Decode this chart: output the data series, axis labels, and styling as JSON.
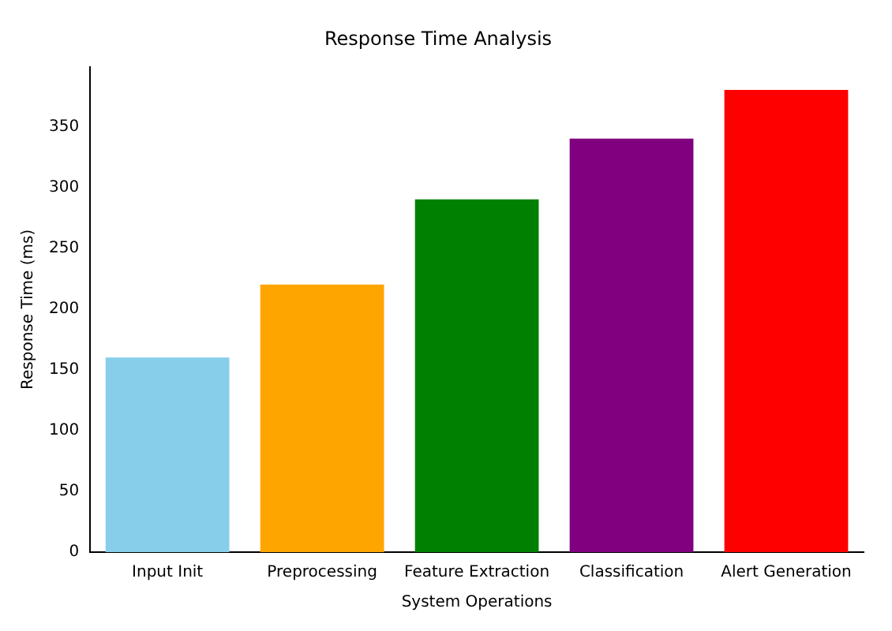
{
  "chart_data": {
    "type": "bar",
    "title": "Response Time Analysis",
    "xlabel": "System Operations",
    "ylabel": "Response Time (ms)",
    "categories": [
      "Input Init",
      "Preprocessing",
      "Feature Extraction",
      "Classification",
      "Alert Generation"
    ],
    "values": [
      160,
      220,
      290,
      340,
      380
    ],
    "colors": [
      "#87ceeb",
      "#ffa500",
      "#008000",
      "#800080",
      "#ff0000"
    ],
    "ylim": [
      0,
      399
    ],
    "yticks": [
      0,
      50,
      100,
      150,
      200,
      250,
      300,
      350
    ]
  }
}
